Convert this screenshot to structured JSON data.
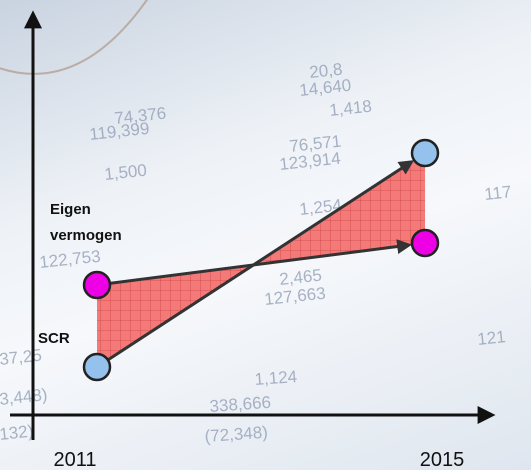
{
  "chart_data": {
    "type": "line",
    "categories": [
      "2011",
      "2015"
    ],
    "series": [
      {
        "name": "Eigen vermogen",
        "color": "#ee00e6",
        "values": [
          32.5,
          43
        ]
      },
      {
        "name": "SCR",
        "color": "#94c2ec",
        "values": [
          12,
          65.5
        ]
      }
    ],
    "ylim": [
      0,
      100
    ],
    "yticks": [],
    "area_color": "#f47a7a"
  },
  "background_figures": [
    "74,376",
    "119,399",
    "1,500",
    "122,753",
    "76,571",
    "123,914",
    "1,254",
    "2,465",
    "127,663",
    "1,124",
    "338,666",
    "(72,348)",
    "37,25",
    "3,448)",
    "132)",
    "14,640",
    "1,418",
    "20,8",
    "117",
    "121"
  ]
}
